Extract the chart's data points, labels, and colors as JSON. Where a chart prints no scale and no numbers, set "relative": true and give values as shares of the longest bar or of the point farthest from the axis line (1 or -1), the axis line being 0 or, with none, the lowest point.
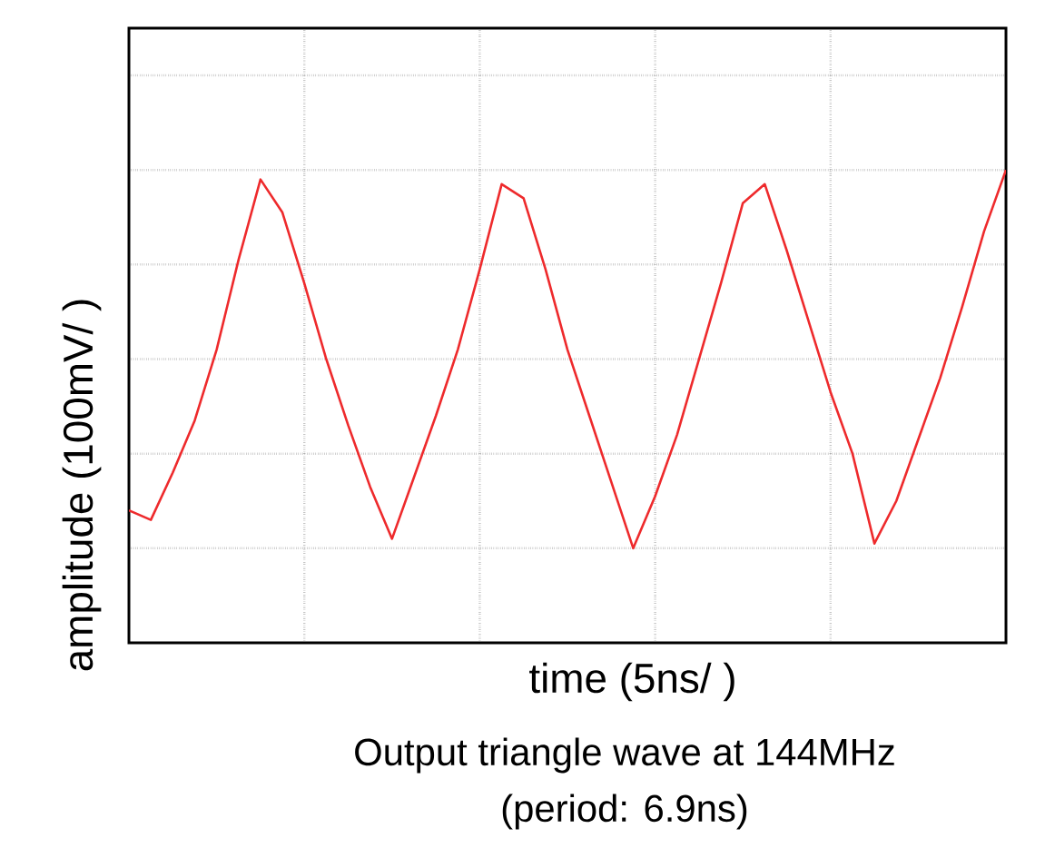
{
  "chart_data": {
    "type": "line",
    "relative": true,
    "grid": true,
    "color": "#ee2a2c",
    "xlabel": "time (5ns/ )",
    "ylabel": "amplitude (100mV/ )",
    "annotations": [
      "Output triangle wave at 144MHz",
      "(period: 6.9ns)"
    ],
    "categories": [
      null,
      null,
      null,
      null,
      null,
      null,
      null,
      null,
      null,
      null,
      null,
      null,
      null,
      null,
      null,
      null,
      null,
      null,
      null,
      null,
      null,
      null,
      null,
      null,
      null,
      null,
      null,
      null,
      null,
      null,
      null,
      null,
      null,
      null,
      null,
      null,
      null,
      null,
      null,
      null,
      null
    ],
    "values": [
      0.28,
      0.26,
      0.36,
      0.47,
      0.62,
      0.81,
      0.98,
      0.91,
      0.76,
      0.6,
      0.46,
      0.33,
      0.22,
      0.35,
      0.48,
      0.62,
      0.79,
      0.97,
      0.94,
      0.79,
      0.62,
      0.48,
      0.34,
      0.2,
      0.31,
      0.44,
      0.6,
      0.76,
      0.93,
      0.97,
      0.83,
      0.68,
      0.53,
      0.4,
      0.21,
      0.3,
      0.43,
      0.56,
      0.71,
      0.87,
      1.0
    ]
  }
}
